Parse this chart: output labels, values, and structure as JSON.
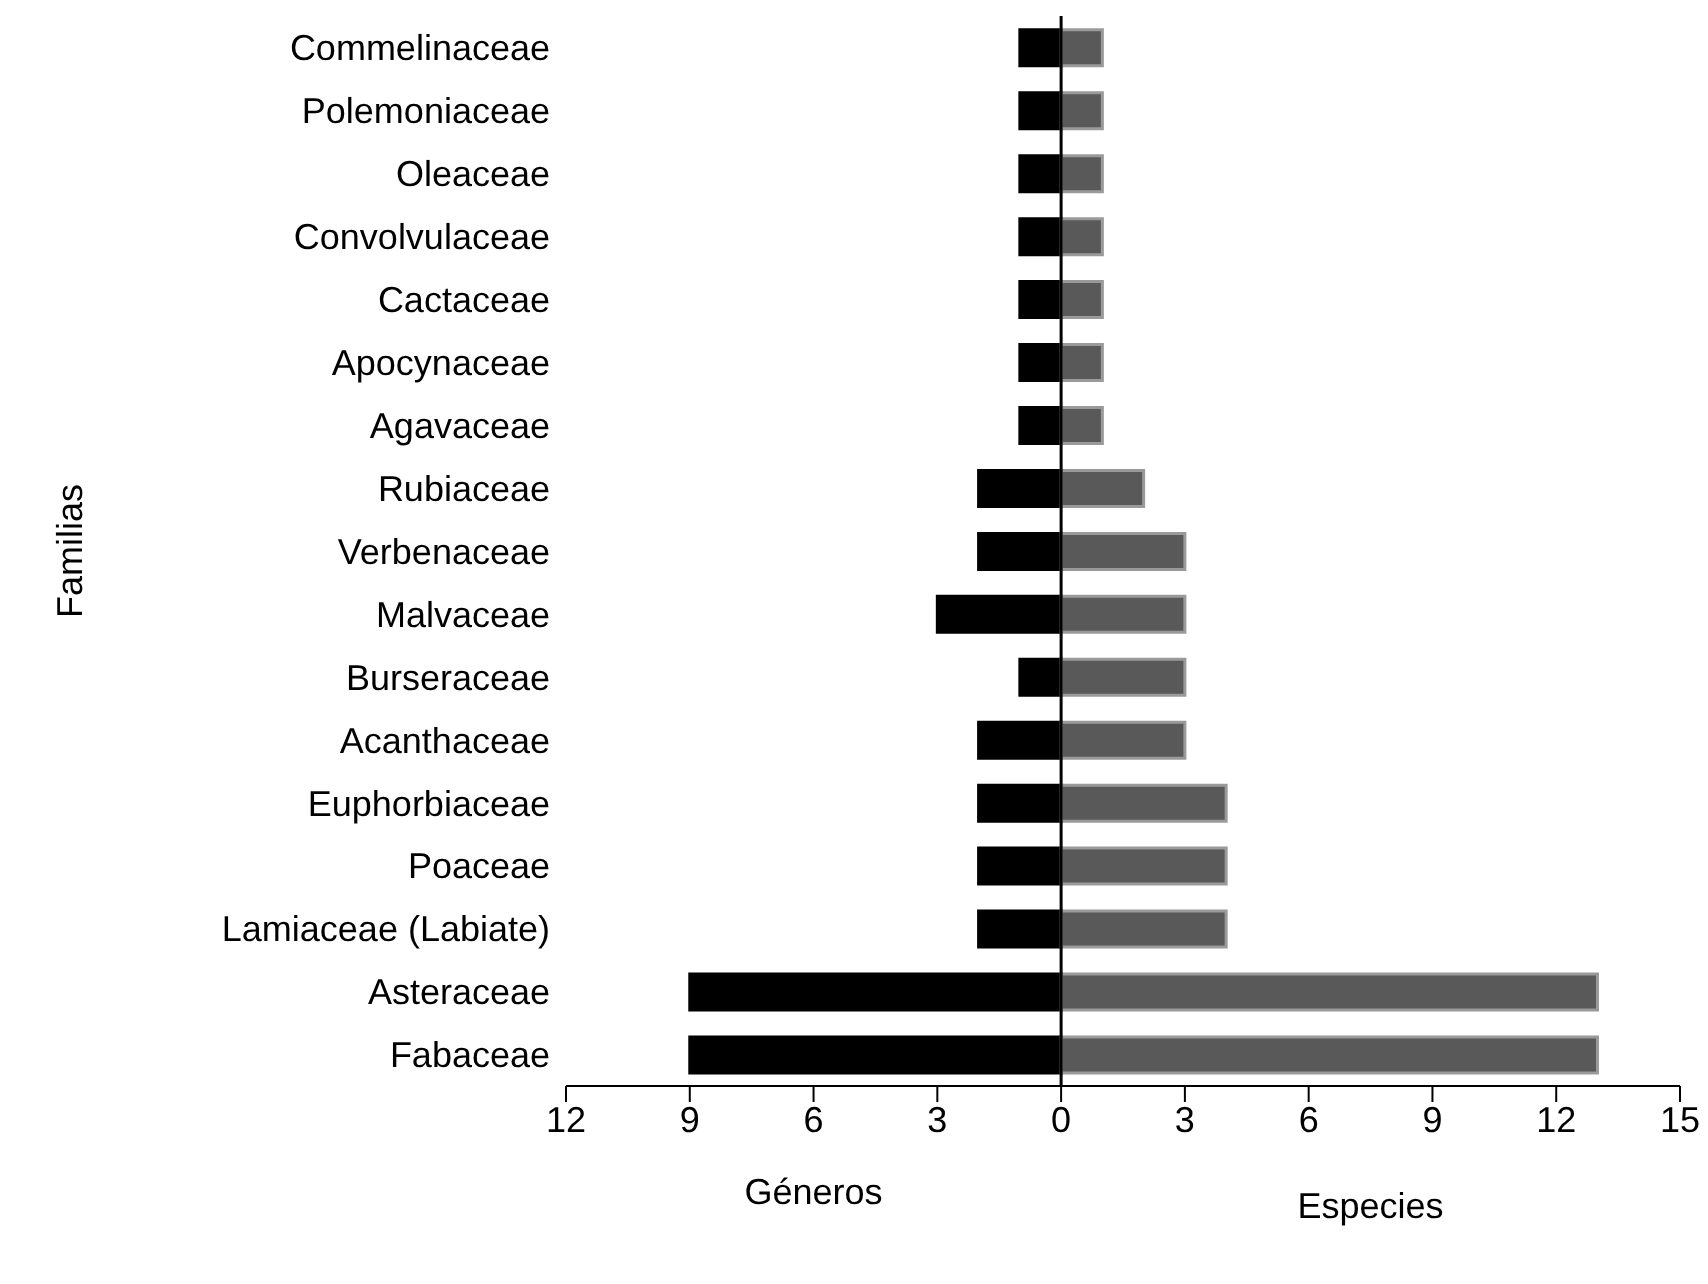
{
  "chart_data": {
    "type": "bar",
    "orientation": "horizontal",
    "stacked": true,
    "ylabel": "Familias",
    "xlabel": "Géneros",
    "annotations": [
      "Especies"
    ],
    "categories": [
      "Commelinaceae",
      "Polemoniaceae",
      "Oleaceae",
      "Convolvulaceae",
      "Cactaceae",
      "Apocynaceae",
      "Agavaceae",
      "Rubiaceae",
      "Verbenaceae",
      "Malvaceae",
      "Burseraceae",
      "Acanthaceae",
      "Euphorbiaceae",
      "Poaceae",
      "Lamiaceae (Labiate)",
      "Asteraceae",
      "Fabaceae"
    ],
    "series": [
      {
        "color": "#000000",
        "values": [
          -1,
          -1,
          -1,
          -1,
          -1,
          -1,
          -1,
          -2,
          -2,
          -3,
          -1,
          -2,
          -2,
          -2,
          -2,
          -9,
          -9
        ]
      },
      {
        "color": "#595959",
        "values": [
          1,
          1,
          1,
          1,
          1,
          1,
          1,
          2,
          3,
          3,
          3,
          3,
          4,
          4,
          4,
          13,
          13
        ]
      }
    ],
    "xlim": [
      -12,
      15
    ],
    "xticks": [
      {
        "value": -12,
        "label": "12"
      },
      {
        "value": -9,
        "label": "9"
      },
      {
        "value": -6,
        "label": "6"
      },
      {
        "value": -3,
        "label": "3"
      },
      0,
      3,
      6,
      9,
      12,
      15
    ],
    "legend": false
  }
}
